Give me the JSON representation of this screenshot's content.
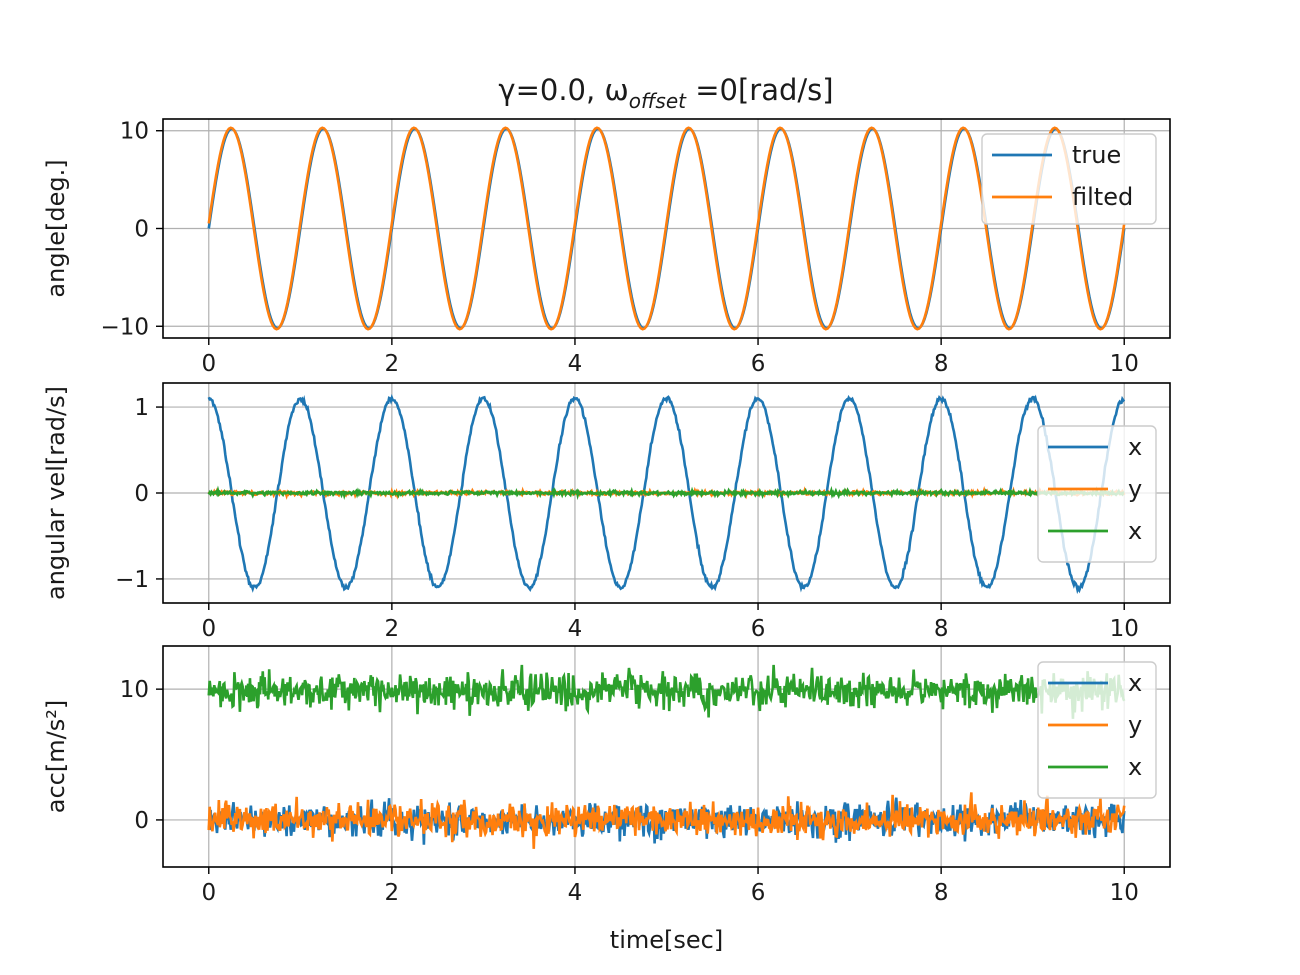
{
  "figure_title": {
    "prefix": "γ=0.0, ω",
    "subscript": "offset",
    "suffix": " =0[rad/s]"
  },
  "colors": {
    "c0": "#1f77b4",
    "c1": "#ff7f0e",
    "c2": "#2ca02c",
    "grid": "#b0b0b0",
    "axes": "#000000"
  },
  "chart_data": [
    {
      "type": "line",
      "panel": "top",
      "title": "γ=0.0, ω_offset =0[rad/s]",
      "xlabel": "",
      "ylabel": "angle[deg.]",
      "xlim": [
        -0.5,
        10.5
      ],
      "ylim": [
        -11.2,
        11.2
      ],
      "xticks": [
        0,
        2,
        4,
        6,
        8,
        10
      ],
      "xtick_labels": [
        "0",
        "2",
        "4",
        "6",
        "8",
        "10"
      ],
      "yticks": [
        -10,
        0,
        10
      ],
      "ytick_labels": [
        "−10",
        "0",
        "10"
      ],
      "grid": true,
      "legend_position": "top-right",
      "series": [
        {
          "name": "true",
          "color": "#1f77b4",
          "kind": "sine",
          "amplitude": 10.2,
          "frequency_hz": 1.0,
          "offset": 0.0,
          "phase": 0.0,
          "noise": 0.0
        },
        {
          "name": "filted",
          "color": "#ff7f0e",
          "kind": "sine",
          "amplitude": 10.3,
          "frequency_hz": 1.0,
          "offset": 0.0,
          "phase": 0.05,
          "noise": 0.0
        }
      ]
    },
    {
      "type": "line",
      "panel": "middle",
      "xlabel": "",
      "ylabel": "angular vel[rad/s]",
      "xlim": [
        -0.5,
        10.5
      ],
      "ylim": [
        -1.28,
        1.28
      ],
      "xticks": [
        0,
        2,
        4,
        6,
        8,
        10
      ],
      "xtick_labels": [
        "0",
        "2",
        "4",
        "6",
        "8",
        "10"
      ],
      "yticks": [
        -1,
        0,
        1
      ],
      "ytick_labels": [
        "−1",
        "0",
        "1"
      ],
      "grid": true,
      "legend_position": "center-right",
      "series": [
        {
          "name": "x",
          "color": "#1f77b4",
          "kind": "cosine",
          "amplitude": 1.1,
          "frequency_hz": 1.0,
          "offset": 0.0,
          "phase": 0.0,
          "noise": 0.02
        },
        {
          "name": "y",
          "color": "#ff7f0e",
          "kind": "noise",
          "amplitude": 0.0,
          "frequency_hz": 0.0,
          "offset": 0.0,
          "phase": 0.0,
          "noise": 0.015
        },
        {
          "name": "x",
          "color": "#2ca02c",
          "kind": "noise",
          "amplitude": 0.0,
          "frequency_hz": 0.0,
          "offset": 0.0,
          "phase": 0.0,
          "noise": 0.015
        }
      ]
    },
    {
      "type": "line",
      "panel": "bottom",
      "xlabel": "time[sec]",
      "ylabel": "acc[m/s²]",
      "xlim": [
        -0.5,
        10.5
      ],
      "ylim": [
        -3.6,
        13.3
      ],
      "xticks": [
        0,
        2,
        4,
        6,
        8,
        10
      ],
      "xtick_labels": [
        "0",
        "2",
        "4",
        "6",
        "8",
        "10"
      ],
      "yticks": [
        0,
        10
      ],
      "ytick_labels": [
        "0",
        "10"
      ],
      "grid": true,
      "legend_position": "top-right",
      "series": [
        {
          "name": "x",
          "color": "#1f77b4",
          "kind": "noise",
          "amplitude": 0.0,
          "frequency_hz": 0.0,
          "offset": 0.0,
          "phase": 0.0,
          "noise": 0.9
        },
        {
          "name": "y",
          "color": "#ff7f0e",
          "kind": "noise",
          "amplitude": 0.0,
          "frequency_hz": 0.0,
          "offset": 0.0,
          "phase": 0.0,
          "noise": 0.9
        },
        {
          "name": "x",
          "color": "#2ca02c",
          "kind": "noise",
          "amplitude": 0.0,
          "frequency_hz": 0.0,
          "offset": 9.9,
          "phase": 0.0,
          "noise": 0.9
        }
      ]
    }
  ]
}
